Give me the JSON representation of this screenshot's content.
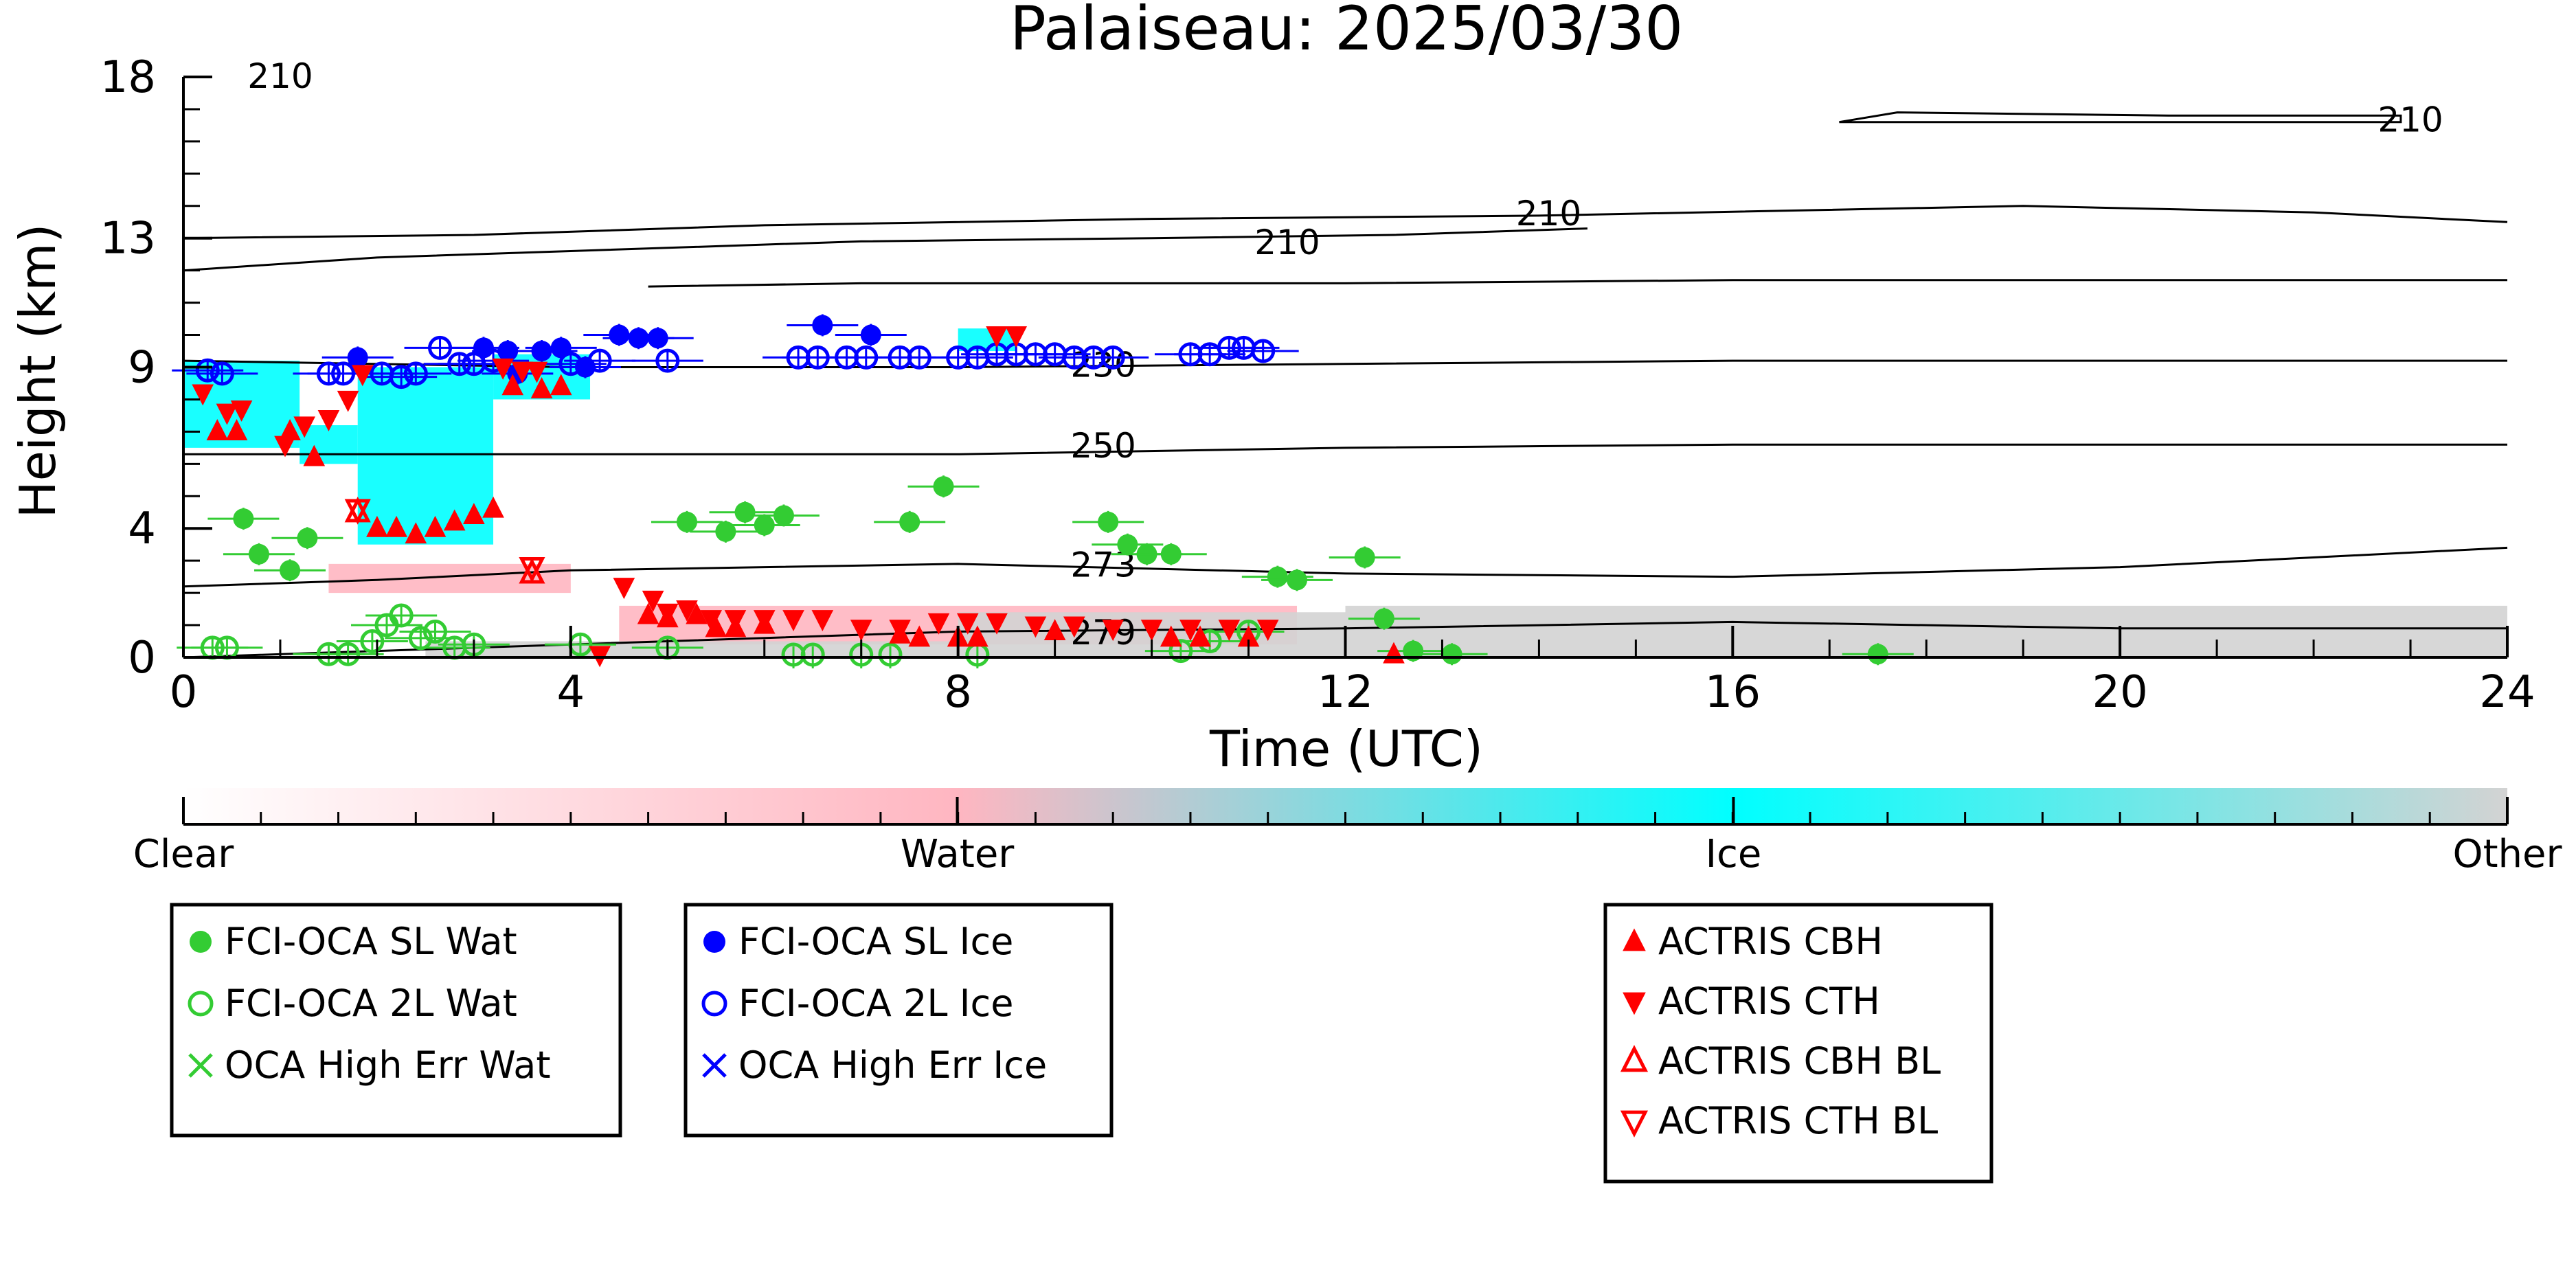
{
  "chart_data": {
    "type": "scatter",
    "title": "Palaiseau: 2025/03/30",
    "xlabel": "Time (UTC)",
    "ylabel": "Height (km)",
    "xlim": [
      0,
      24
    ],
    "ylim": [
      0,
      18
    ],
    "xticks": [
      0,
      4,
      8,
      12,
      16,
      20,
      24
    ],
    "yticks": [
      0,
      4,
      9,
      13,
      18
    ],
    "background_categories": {
      "colors": {
        "Clear": "#ffffff",
        "Water": "#ffb6c1",
        "Ice": "#00ffff",
        "Other": "#d3d3d3"
      },
      "regions": [
        {
          "category": "Ice",
          "t0": 0.0,
          "t1": 1.2,
          "h0": 6.5,
          "h1": 9.2
        },
        {
          "category": "Ice",
          "t0": 1.8,
          "t1": 3.2,
          "h0": 3.5,
          "h1": 9.0
        },
        {
          "category": "Ice",
          "t0": 1.2,
          "t1": 1.8,
          "h0": 6.0,
          "h1": 7.2
        },
        {
          "category": "Ice",
          "t0": 3.2,
          "t1": 4.2,
          "h0": 8.0,
          "h1": 9.4
        },
        {
          "category": "Ice",
          "t0": 8.0,
          "t1": 8.6,
          "h0": 9.5,
          "h1": 10.2
        },
        {
          "category": "Water",
          "t0": 4.5,
          "t1": 11.5,
          "h0": 0.4,
          "h1": 1.6
        },
        {
          "category": "Water",
          "t0": 1.5,
          "t1": 4.0,
          "h0": 2.0,
          "h1": 2.9
        },
        {
          "category": "Other",
          "t0": 12.0,
          "t1": 24.0,
          "h0": 0.0,
          "h1": 1.6
        },
        {
          "category": "Other",
          "t0": 8.0,
          "t1": 12.0,
          "h0": 0.0,
          "h1": 1.4
        },
        {
          "category": "Other",
          "t0": 2.5,
          "t1": 8.0,
          "h0": 0.0,
          "h1": 0.5
        }
      ]
    },
    "contours": [
      {
        "label": "210",
        "label_at": [
          1.0,
          18.0
        ],
        "points": []
      },
      {
        "label": "210",
        "label_at": [
          23.0,
          16.6
        ],
        "points": [
          [
            17.1,
            16.6
          ],
          [
            17.7,
            16.9
          ],
          [
            20.5,
            16.8
          ],
          [
            22.9,
            16.8
          ],
          [
            22.9,
            16.6
          ],
          [
            17.1,
            16.6
          ]
        ]
      },
      {
        "label": "210",
        "label_at": [
          14.1,
          13.7
        ],
        "points": [
          [
            0.0,
            13.0
          ],
          [
            3.0,
            13.1
          ],
          [
            6.0,
            13.4
          ],
          [
            10.0,
            13.6
          ],
          [
            14.0,
            13.7
          ],
          [
            19.0,
            14.0
          ],
          [
            22.0,
            13.8
          ],
          [
            24.0,
            13.5
          ]
        ]
      },
      {
        "label": "210",
        "label_at": [
          11.4,
          12.8
        ],
        "points": [
          [
            0.0,
            12.0
          ],
          [
            2.0,
            12.4
          ],
          [
            4.0,
            12.6
          ],
          [
            7.0,
            12.9
          ],
          [
            10.0,
            13.0
          ],
          [
            12.5,
            13.1
          ],
          [
            14.5,
            13.3
          ]
        ]
      },
      {
        "label": "",
        "label_at": [
          5.0,
          11.5
        ],
        "points": [
          [
            4.8,
            11.5
          ],
          [
            7.0,
            11.6
          ],
          [
            12.0,
            11.6
          ],
          [
            16.0,
            11.7
          ],
          [
            24.0,
            11.7
          ]
        ]
      },
      {
        "label": "230",
        "label_at": [
          9.5,
          9.0
        ],
        "points": [
          [
            0.0,
            9.2
          ],
          [
            4.0,
            9.0
          ],
          [
            8.0,
            9.0
          ],
          [
            12.0,
            9.1
          ],
          [
            16.0,
            9.2
          ],
          [
            24.0,
            9.2
          ]
        ]
      },
      {
        "label": "250",
        "label_at": [
          9.5,
          6.5
        ],
        "points": [
          [
            0.0,
            6.3
          ],
          [
            4.0,
            6.3
          ],
          [
            8.0,
            6.3
          ],
          [
            12.0,
            6.5
          ],
          [
            16.0,
            6.6
          ],
          [
            24.0,
            6.6
          ]
        ]
      },
      {
        "label": "273",
        "label_at": [
          9.5,
          2.8
        ],
        "points": [
          [
            0.0,
            2.2
          ],
          [
            2.0,
            2.4
          ],
          [
            4.0,
            2.7
          ],
          [
            6.0,
            2.8
          ],
          [
            8.0,
            2.9
          ],
          [
            12.0,
            2.6
          ],
          [
            16.0,
            2.5
          ],
          [
            20.0,
            2.8
          ],
          [
            24.0,
            3.4
          ]
        ]
      },
      {
        "label": "279",
        "label_at": [
          9.5,
          0.7
        ],
        "points": [
          [
            0.0,
            0.0
          ],
          [
            4.0,
            0.4
          ],
          [
            8.0,
            0.8
          ],
          [
            12.0,
            0.9
          ],
          [
            16.0,
            1.1
          ],
          [
            20.0,
            0.9
          ],
          [
            24.0,
            0.9
          ]
        ]
      }
    ],
    "series": [
      {
        "name": "FCI-OCA SL Wat",
        "marker": "filled-circle",
        "color": "#33cc33",
        "points": [
          [
            0.62,
            4.3
          ],
          [
            0.78,
            3.2
          ],
          [
            1.1,
            2.7
          ],
          [
            1.28,
            3.7
          ],
          [
            5.2,
            4.2
          ],
          [
            5.6,
            3.9
          ],
          [
            5.8,
            4.5
          ],
          [
            6.0,
            4.1
          ],
          [
            6.2,
            4.4
          ],
          [
            7.5,
            4.2
          ],
          [
            7.85,
            5.3
          ],
          [
            9.55,
            4.2
          ],
          [
            9.75,
            3.5
          ],
          [
            9.95,
            3.2
          ],
          [
            10.2,
            3.2
          ],
          [
            11.3,
            2.5
          ],
          [
            11.5,
            2.4
          ],
          [
            12.2,
            3.1
          ],
          [
            12.4,
            1.2
          ],
          [
            12.7,
            0.2
          ],
          [
            13.1,
            0.1
          ],
          [
            17.5,
            0.1
          ]
        ],
        "error_bars": true
      },
      {
        "name": "FCI-OCA 2L Wat",
        "marker": "open-circle",
        "color": "#33cc33",
        "points": [
          [
            0.3,
            0.3
          ],
          [
            0.45,
            0.3
          ],
          [
            1.5,
            0.1
          ],
          [
            1.7,
            0.1
          ],
          [
            1.95,
            0.5
          ],
          [
            2.1,
            1.0
          ],
          [
            2.25,
            1.3
          ],
          [
            2.45,
            0.6
          ],
          [
            2.6,
            0.8
          ],
          [
            2.8,
            0.3
          ],
          [
            3.0,
            0.4
          ],
          [
            4.1,
            0.4
          ],
          [
            5.0,
            0.3
          ],
          [
            6.3,
            0.0
          ],
          [
            6.5,
            0.0
          ],
          [
            7.0,
            0.0
          ],
          [
            7.3,
            0.0
          ],
          [
            8.2,
            0.0
          ],
          [
            10.3,
            0.2
          ],
          [
            10.6,
            0.5
          ],
          [
            11.0,
            0.8
          ]
        ],
        "error_bars": true
      },
      {
        "name": "OCA High Err Wat",
        "marker": "x",
        "color": "#33cc33",
        "points": []
      },
      {
        "name": "FCI-OCA SL Ice",
        "marker": "filled-circle",
        "color": "#0000ff",
        "points": [
          [
            1.8,
            9.3
          ],
          [
            3.1,
            9.6
          ],
          [
            3.35,
            9.5
          ],
          [
            3.45,
            8.8
          ],
          [
            3.7,
            9.5
          ],
          [
            3.9,
            9.6
          ],
          [
            4.15,
            9.0
          ],
          [
            4.5,
            10.0
          ],
          [
            4.7,
            9.9
          ],
          [
            4.9,
            9.9
          ],
          [
            6.6,
            10.3
          ],
          [
            7.1,
            10.0
          ]
        ],
        "error_bars": true
      },
      {
        "name": "FCI-OCA 2L Ice",
        "marker": "open-circle",
        "color": "#0000ff",
        "points": [
          [
            0.25,
            8.9
          ],
          [
            0.4,
            8.8
          ],
          [
            1.5,
            8.8
          ],
          [
            1.65,
            8.8
          ],
          [
            2.05,
            8.8
          ],
          [
            2.25,
            8.7
          ],
          [
            2.4,
            8.8
          ],
          [
            2.65,
            9.6
          ],
          [
            2.85,
            9.1
          ],
          [
            3.0,
            9.1
          ],
          [
            3.2,
            9.2
          ],
          [
            4.0,
            9.1
          ],
          [
            4.3,
            9.2
          ],
          [
            5.0,
            9.2
          ],
          [
            6.35,
            9.3
          ],
          [
            6.55,
            9.3
          ],
          [
            6.85,
            9.3
          ],
          [
            7.05,
            9.3
          ],
          [
            7.4,
            9.3
          ],
          [
            7.6,
            9.3
          ],
          [
            8.0,
            9.3
          ],
          [
            8.2,
            9.3
          ],
          [
            8.4,
            9.4
          ],
          [
            8.6,
            9.4
          ],
          [
            8.8,
            9.4
          ],
          [
            9.0,
            9.4
          ],
          [
            9.2,
            9.3
          ],
          [
            9.4,
            9.3
          ],
          [
            9.6,
            9.3
          ],
          [
            10.4,
            9.4
          ],
          [
            10.6,
            9.4
          ],
          [
            10.8,
            9.6
          ],
          [
            10.95,
            9.6
          ],
          [
            11.15,
            9.5
          ]
        ],
        "error_bars": true
      },
      {
        "name": "OCA High Err Ice",
        "marker": "x",
        "color": "#0000ff",
        "points": []
      },
      {
        "name": "ACTRIS CBH",
        "marker": "filled-triangle-up",
        "color": "#ff0000",
        "points": [
          [
            0.35,
            7.0
          ],
          [
            0.55,
            7.0
          ],
          [
            1.1,
            7.0
          ],
          [
            1.35,
            6.2
          ],
          [
            2.0,
            4.0
          ],
          [
            2.2,
            4.0
          ],
          [
            2.4,
            3.8
          ],
          [
            2.6,
            4.0
          ],
          [
            2.8,
            4.2
          ],
          [
            3.0,
            4.4
          ],
          [
            3.2,
            4.6
          ],
          [
            3.4,
            8.4
          ],
          [
            3.7,
            8.3
          ],
          [
            3.9,
            8.4
          ],
          [
            4.8,
            1.3
          ],
          [
            5.0,
            1.2
          ],
          [
            5.3,
            1.3
          ],
          [
            5.5,
            0.9
          ],
          [
            5.7,
            0.9
          ],
          [
            6.0,
            1.0
          ],
          [
            7.4,
            0.7
          ],
          [
            7.6,
            0.6
          ],
          [
            8.0,
            0.6
          ],
          [
            8.2,
            0.6
          ],
          [
            9.0,
            0.8
          ],
          [
            10.2,
            0.6
          ],
          [
            10.5,
            0.6
          ],
          [
            11.0,
            0.6
          ],
          [
            12.5,
            0.0
          ]
        ]
      },
      {
        "name": "ACTRIS CTH",
        "marker": "filled-triangle-down",
        "color": "#ff0000",
        "points": [
          [
            0.2,
            8.2
          ],
          [
            0.45,
            7.6
          ],
          [
            0.6,
            7.7
          ],
          [
            1.05,
            6.6
          ],
          [
            1.25,
            7.2
          ],
          [
            1.5,
            7.4
          ],
          [
            1.7,
            8.0
          ],
          [
            1.85,
            8.8
          ],
          [
            3.3,
            9.0
          ],
          [
            3.5,
            8.9
          ],
          [
            3.65,
            8.9
          ],
          [
            4.55,
            2.2
          ],
          [
            4.85,
            1.8
          ],
          [
            5.0,
            1.4
          ],
          [
            5.2,
            1.5
          ],
          [
            5.45,
            1.2
          ],
          [
            5.7,
            1.2
          ],
          [
            6.0,
            1.2
          ],
          [
            6.3,
            1.2
          ],
          [
            6.6,
            1.2
          ],
          [
            7.0,
            0.9
          ],
          [
            7.4,
            0.9
          ],
          [
            7.8,
            1.1
          ],
          [
            8.1,
            1.1
          ],
          [
            8.4,
            1.1
          ],
          [
            8.4,
            10.0
          ],
          [
            8.6,
            10.0
          ],
          [
            8.8,
            1.0
          ],
          [
            9.2,
            1.0
          ],
          [
            9.6,
            0.9
          ],
          [
            10.0,
            0.9
          ],
          [
            10.4,
            0.9
          ],
          [
            10.8,
            0.9
          ],
          [
            11.2,
            0.9
          ],
          [
            4.3,
            0.0
          ]
        ]
      },
      {
        "name": "ACTRIS CBH BL",
        "marker": "open-triangle-up",
        "color": "#ff0000",
        "points": [
          [
            1.8,
            4.5
          ],
          [
            3.6,
            2.6
          ]
        ]
      },
      {
        "name": "ACTRIS CTH BL",
        "marker": "open-triangle-down",
        "color": "#ff0000",
        "points": [
          [
            1.8,
            4.6
          ],
          [
            3.6,
            2.8
          ]
        ]
      }
    ],
    "colorbar": {
      "labels": [
        "Clear",
        "Water",
        "Ice",
        "Other"
      ],
      "colors": [
        "#ffffff",
        "#ffb6c1",
        "#00ffff",
        "#d3d3d3"
      ],
      "stops": [
        0,
        0.333,
        0.667,
        1.0
      ]
    },
    "legend": {
      "groups": [
        [
          "FCI-OCA SL Wat",
          "FCI-OCA 2L Wat",
          "OCA High Err Wat"
        ],
        [
          "FCI-OCA SL Ice",
          "FCI-OCA 2L Ice",
          "OCA High Err Ice"
        ],
        [
          "ACTRIS CBH",
          "ACTRIS CTH",
          "ACTRIS CBH BL",
          "ACTRIS CTH BL"
        ]
      ]
    },
    "grid": false
  }
}
